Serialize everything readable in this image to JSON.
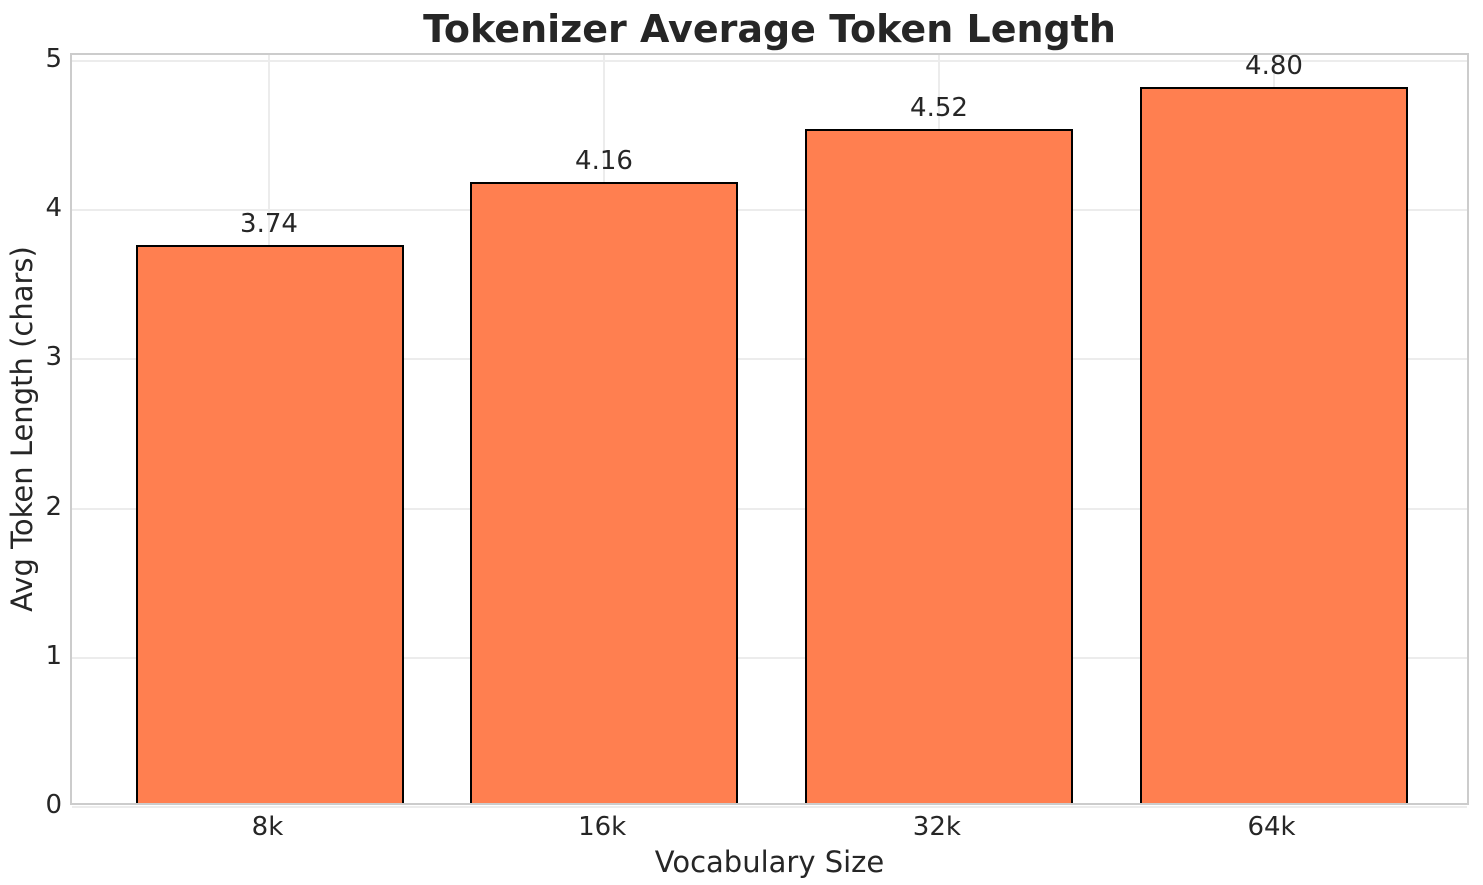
{
  "chart_data": {
    "type": "bar",
    "title": "Tokenizer Average Token Length",
    "xlabel": "Vocabulary Size",
    "ylabel": "Avg Token Length (chars)",
    "categories": [
      "8k",
      "16k",
      "32k",
      "64k"
    ],
    "values": [
      3.74,
      4.16,
      4.52,
      4.8
    ],
    "bar_labels": [
      "3.74",
      "4.16",
      "4.52",
      "4.80"
    ],
    "y_ticks": [
      0,
      1,
      2,
      3,
      4,
      5
    ],
    "y_tick_labels": [
      "0",
      "1",
      "2",
      "3",
      "4",
      "5"
    ],
    "ylim": [
      0,
      5.04
    ],
    "grid": true,
    "legend": false,
    "colors": {
      "bar_fill": "#FF7F50",
      "bar_edge": "#000000",
      "grid": "#ECECEC",
      "spine": "#CCCCCC",
      "text": "#262626",
      "background": "#FFFFFF"
    }
  }
}
